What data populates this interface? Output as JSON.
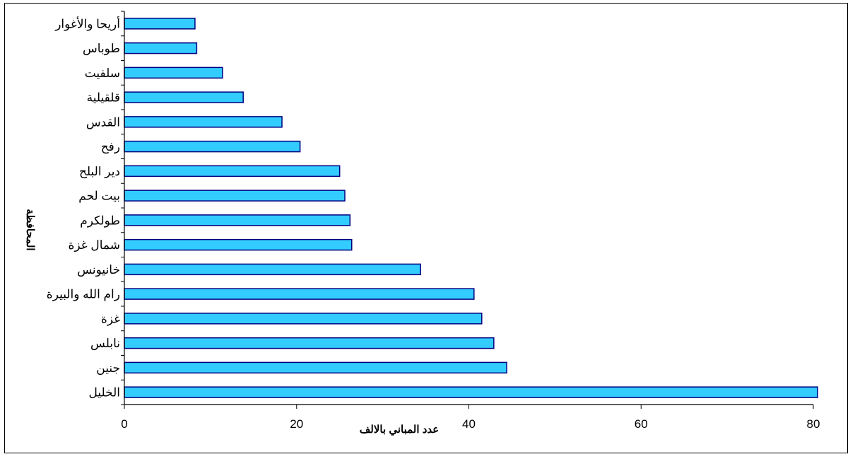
{
  "chart_data": {
    "type": "bar",
    "orientation": "horizontal",
    "categories": [
      "الخليل",
      "جنين",
      "نابلس",
      "غزة",
      "رام الله والبيرة",
      "خانيونس",
      "شمال غزة",
      "طولكرم",
      "بيت لحم",
      "دير البلح",
      "رفح",
      "القدس",
      "قلقيلية",
      "سلفيت",
      "طوباس",
      "أريحا والأغوار"
    ],
    "values": [
      80.5,
      44.4,
      42.9,
      41.5,
      40.6,
      34.4,
      26.4,
      26.2,
      25.6,
      25.0,
      20.4,
      18.3,
      13.8,
      11.4,
      8.4,
      8.2
    ],
    "xlim": [
      0,
      80
    ],
    "xticks": [
      0,
      20,
      40,
      60,
      80
    ],
    "xlabel": "عدد المباني بالالف",
    "ylabel": "المحافظة",
    "bar_color": "#33ccff",
    "bar_edge_color": "#000080"
  }
}
